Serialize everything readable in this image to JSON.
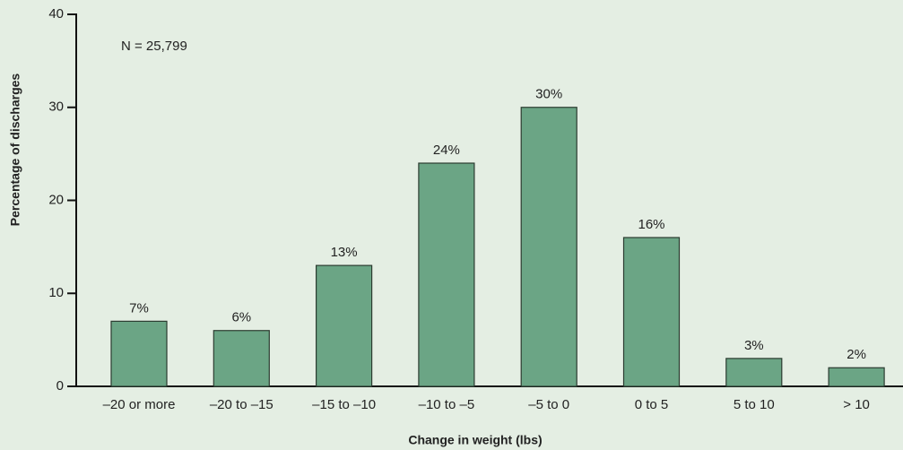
{
  "chart_data": {
    "type": "bar",
    "annotation": "N = 25,799",
    "x_label": "Change in weight (lbs)",
    "y_label": "Percentage of discharges",
    "categories": [
      "–20 or more",
      "–20 to –15",
      "–15 to –10",
      "–10 to –5",
      "–5 to 0",
      "0 to 5",
      "5 to 10",
      "> 10"
    ],
    "values": [
      7,
      6,
      13,
      24,
      30,
      16,
      3,
      2
    ],
    "value_labels": [
      "7%",
      "6%",
      "13%",
      "24%",
      "30%",
      "16%",
      "3%",
      "2%"
    ],
    "color": "#6ba585",
    "ylim": [
      0,
      40
    ],
    "yticks": [
      0,
      10,
      20,
      30,
      40
    ]
  }
}
